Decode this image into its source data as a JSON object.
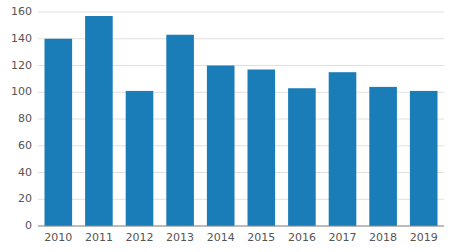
{
  "chart_data": {
    "type": "bar",
    "categories": [
      "2010",
      "2011",
      "2012",
      "2013",
      "2014",
      "2015",
      "2016",
      "2017",
      "2018",
      "2019"
    ],
    "values": [
      140,
      157,
      101,
      143,
      120,
      117,
      103,
      115,
      104,
      101
    ],
    "color": "#1b7db8",
    "ylim": [
      0,
      160
    ],
    "yticks": [
      0,
      20,
      40,
      60,
      80,
      100,
      120,
      140,
      160
    ],
    "grid": true
  }
}
